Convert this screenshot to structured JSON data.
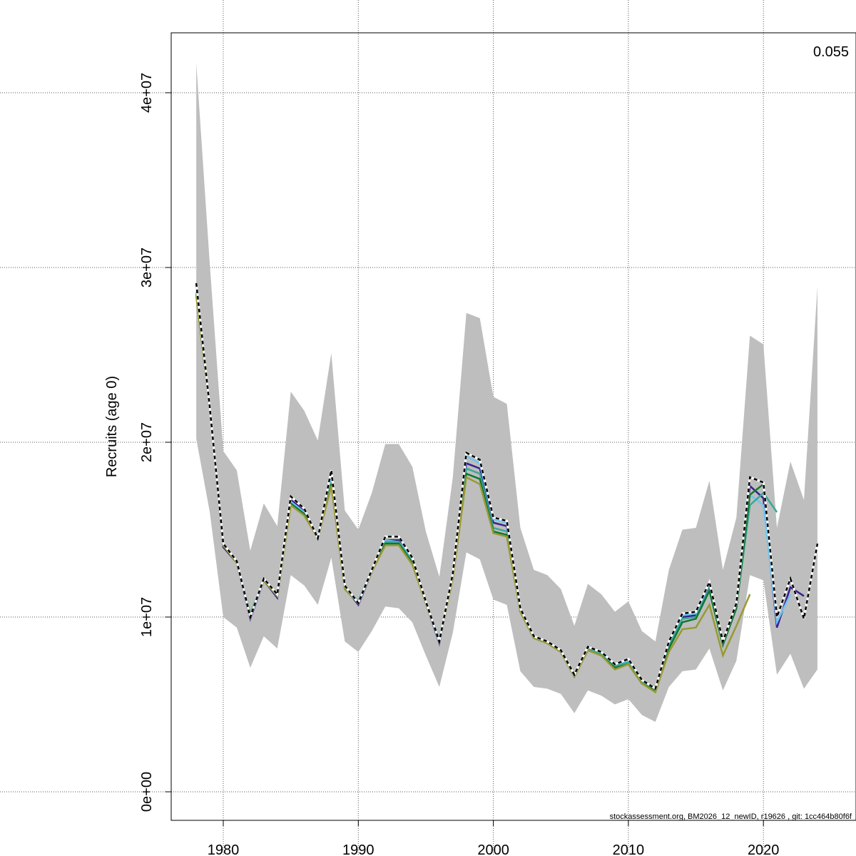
{
  "chart_data": {
    "type": "line",
    "title": "",
    "xlabel": "",
    "ylabel": "Recruits (age 0)",
    "xlim": [
      1976.5,
      2025.5
    ],
    "ylim": [
      -1500000.0,
      43400000.0
    ],
    "grid": true,
    "x_ticks": [
      1980,
      1990,
      2000,
      2010,
      2020
    ],
    "y_ticks": [
      0,
      10000000.0,
      20000000.0,
      30000000.0,
      40000000.0
    ],
    "y_tick_labels": [
      "0e+00",
      "1e+07",
      "2e+07",
      "3e+07",
      "4e+07"
    ],
    "x_tick_labels": [
      "1980",
      "1990",
      "2000",
      "2010",
      "2020"
    ],
    "annotation": "0.055",
    "footer": "stockassessment.org, BM2026_12_newID, r19626 , git: 1cc464b80f6f",
    "start_year": 1978,
    "confidence_band": {
      "color": "#bebebe",
      "upper": [
        41700000.0,
        30200000.0,
        19500000.0,
        18400000.0,
        13800000.0,
        16500000.0,
        15200000.0,
        22900000.0,
        21800000.0,
        20100000.0,
        25100000.0,
        16100000.0,
        15000000.0,
        17100000.0,
        19900000.0,
        19900000.0,
        18600000.0,
        14900000.0,
        12300000.0,
        18000000.0,
        27400000.0,
        27100000.0,
        22600000.0,
        22200000.0,
        15100000.0,
        12700000.0,
        12400000.0,
        11600000.0,
        9500000.0,
        11900000.0,
        11300000.0,
        10300000.0,
        10900000.0,
        9200000.0,
        8600000.0,
        12700000.0,
        15000000.0,
        15100000.0,
        17800000.0,
        12700000.0,
        15700000.0,
        26100000.0,
        25600000.0,
        15100000.0,
        18900000.0,
        16700000.0,
        28900000.0
      ],
      "lower": [
        20200000.0,
        16000000.0,
        10000000.0,
        9400000.0,
        7100000.0,
        8900000.0,
        8200000.0,
        12400000.0,
        11800000.0,
        10700000.0,
        13400000.0,
        8600000.0,
        8000000.0,
        9200000.0,
        10600000.0,
        10500000.0,
        9700000.0,
        7800000.0,
        6000000.0,
        9100000.0,
        13700000.0,
        13300000.0,
        11000000.0,
        10700000.0,
        6900000.0,
        6000000.0,
        5900000.0,
        5600000.0,
        4500000.0,
        5800000.0,
        5500000.0,
        5000000.0,
        5300000.0,
        4400000.0,
        4000000.0,
        6000000.0,
        6900000.0,
        7000000.0,
        8200000.0,
        5800000.0,
        7500000.0,
        12400000.0,
        12100000.0,
        6700000.0,
        7900000.0,
        5900000.0,
        7000000.0
      ]
    },
    "series": [
      {
        "color": "#3b1f8f",
        "dashed": false,
        "values": [
          29000000.0,
          22000000.0,
          14000000.0,
          13100000.0,
          9900000.0,
          12100000.0,
          11100000.0,
          16700000.0,
          16100000.0,
          14500000.0,
          18200000.0,
          11700000.0,
          10700000.0,
          12600000.0,
          14400000.0,
          14400000.0,
          13300000.0,
          10800000.0,
          8500000.0,
          12400000.0,
          18800000.0,
          18500000.0,
          15400000.0,
          15200000.0,
          10400000.0,
          8800000.0,
          8600000.0,
          8100000.0,
          6600000.0,
          8200000.0,
          7900000.0,
          7200000.0,
          7500000.0,
          6300000.0,
          5800000.0,
          8400000.0,
          10000000.0,
          10100000.0,
          11800000.0,
          8500000.0,
          10700000.0,
          17500000.0,
          16800000.0,
          9400000.0,
          11700000.0,
          11200000.0
        ]
      },
      {
        "color": "#6ec6f0",
        "dashed": false,
        "values": [
          28600000.0,
          22000000.0,
          14100000.0,
          13100000.0,
          10000000.0,
          12100000.0,
          11200000.0,
          16600000.0,
          16000000.0,
          14600000.0,
          17900000.0,
          11700000.0,
          10900000.0,
          12700000.0,
          14400000.0,
          14300000.0,
          13400000.0,
          10900000.0,
          8600000.0,
          12400000.0,
          19200000.0,
          18800000.0,
          15600000.0,
          15400000.0,
          10500000.0,
          8900000.0,
          8600000.0,
          8100000.0,
          6700000.0,
          8300000.0,
          8000000.0,
          7300000.0,
          7500000.0,
          6400000.0,
          5900000.0,
          8500000.0,
          10100000.0,
          10200000.0,
          11900000.0,
          8600000.0,
          10800000.0,
          17000000.0,
          16400000.0,
          9700000.0,
          11300000.0
        ]
      },
      {
        "color": "#3aa897",
        "dashed": false,
        "values": [
          28500000.0,
          22000000.0,
          14200000.0,
          13100000.0,
          10200000.0,
          12100000.0,
          11200000.0,
          16500000.0,
          15900000.0,
          14600000.0,
          17700000.0,
          11700000.0,
          10900000.0,
          12700000.0,
          14300000.0,
          14300000.0,
          13200000.0,
          10900000.0,
          8700000.0,
          12400000.0,
          18500000.0,
          18200000.0,
          15100000.0,
          14900000.0,
          10400000.0,
          8800000.0,
          8500000.0,
          8100000.0,
          6700000.0,
          8200000.0,
          7900000.0,
          7200000.0,
          7400000.0,
          6300000.0,
          5900000.0,
          8400000.0,
          9900000.0,
          10000000.0,
          11600000.0,
          8500000.0,
          10600000.0,
          16400000.0,
          17100000.0,
          16000000.0
        ]
      },
      {
        "color": "#117733",
        "dashed": false,
        "values": [
          28400000.0,
          22000000.0,
          14100000.0,
          13100000.0,
          10100000.0,
          12100000.0,
          11200000.0,
          16500000.0,
          15900000.0,
          14500000.0,
          17600000.0,
          11600000.0,
          10800000.0,
          12600000.0,
          14200000.0,
          14200000.0,
          13100000.0,
          10800000.0,
          8600000.0,
          12300000.0,
          18200000.0,
          17900000.0,
          14900000.0,
          14700000.0,
          10300000.0,
          8800000.0,
          8500000.0,
          8000000.0,
          6600000.0,
          8100000.0,
          7800000.0,
          7100000.0,
          7300000.0,
          6200000.0,
          5800000.0,
          8200000.0,
          9700000.0,
          9900000.0,
          11500000.0,
          8400000.0,
          10500000.0,
          17000000.0,
          17600000.0
        ]
      },
      {
        "color": "#999933",
        "dashed": false,
        "values": [
          28400000.0,
          22000000.0,
          14100000.0,
          13100000.0,
          10100000.0,
          12100000.0,
          11200000.0,
          16400000.0,
          15800000.0,
          14500000.0,
          17500000.0,
          11600000.0,
          10800000.0,
          12600000.0,
          14100000.0,
          14100000.0,
          13000000.0,
          10800000.0,
          8600000.0,
          12200000.0,
          18000000.0,
          17600000.0,
          14800000.0,
          14600000.0,
          10300000.0,
          8800000.0,
          8500000.0,
          8000000.0,
          6600000.0,
          8100000.0,
          7800000.0,
          7000000.0,
          7300000.0,
          6200000.0,
          5700000.0,
          8000000.0,
          9300000.0,
          9400000.0,
          10700000.0,
          7800000.0,
          9500000.0,
          11300000.0
        ]
      },
      {
        "color": "#000000",
        "dashed": true,
        "values": [
          29100000.0,
          22000000.0,
          14200000.0,
          13200000.0,
          10000000.0,
          12200000.0,
          11300000.0,
          16900000.0,
          16200000.0,
          14500000.0,
          18400000.0,
          11800000.0,
          10800000.0,
          12700000.0,
          14600000.0,
          14600000.0,
          13400000.0,
          10900000.0,
          8600000.0,
          12500000.0,
          19400000.0,
          19000000.0,
          15700000.0,
          15500000.0,
          10500000.0,
          8900000.0,
          8600000.0,
          8100000.0,
          6700000.0,
          8300000.0,
          8000000.0,
          7300000.0,
          7600000.0,
          6400000.0,
          5900000.0,
          8600000.0,
          10200000.0,
          10300000.0,
          12000000.0,
          8600000.0,
          10800000.0,
          18000000.0,
          17700000.0,
          10000000.0,
          12200000.0,
          9900000.0,
          14200000.0
        ]
      }
    ]
  }
}
